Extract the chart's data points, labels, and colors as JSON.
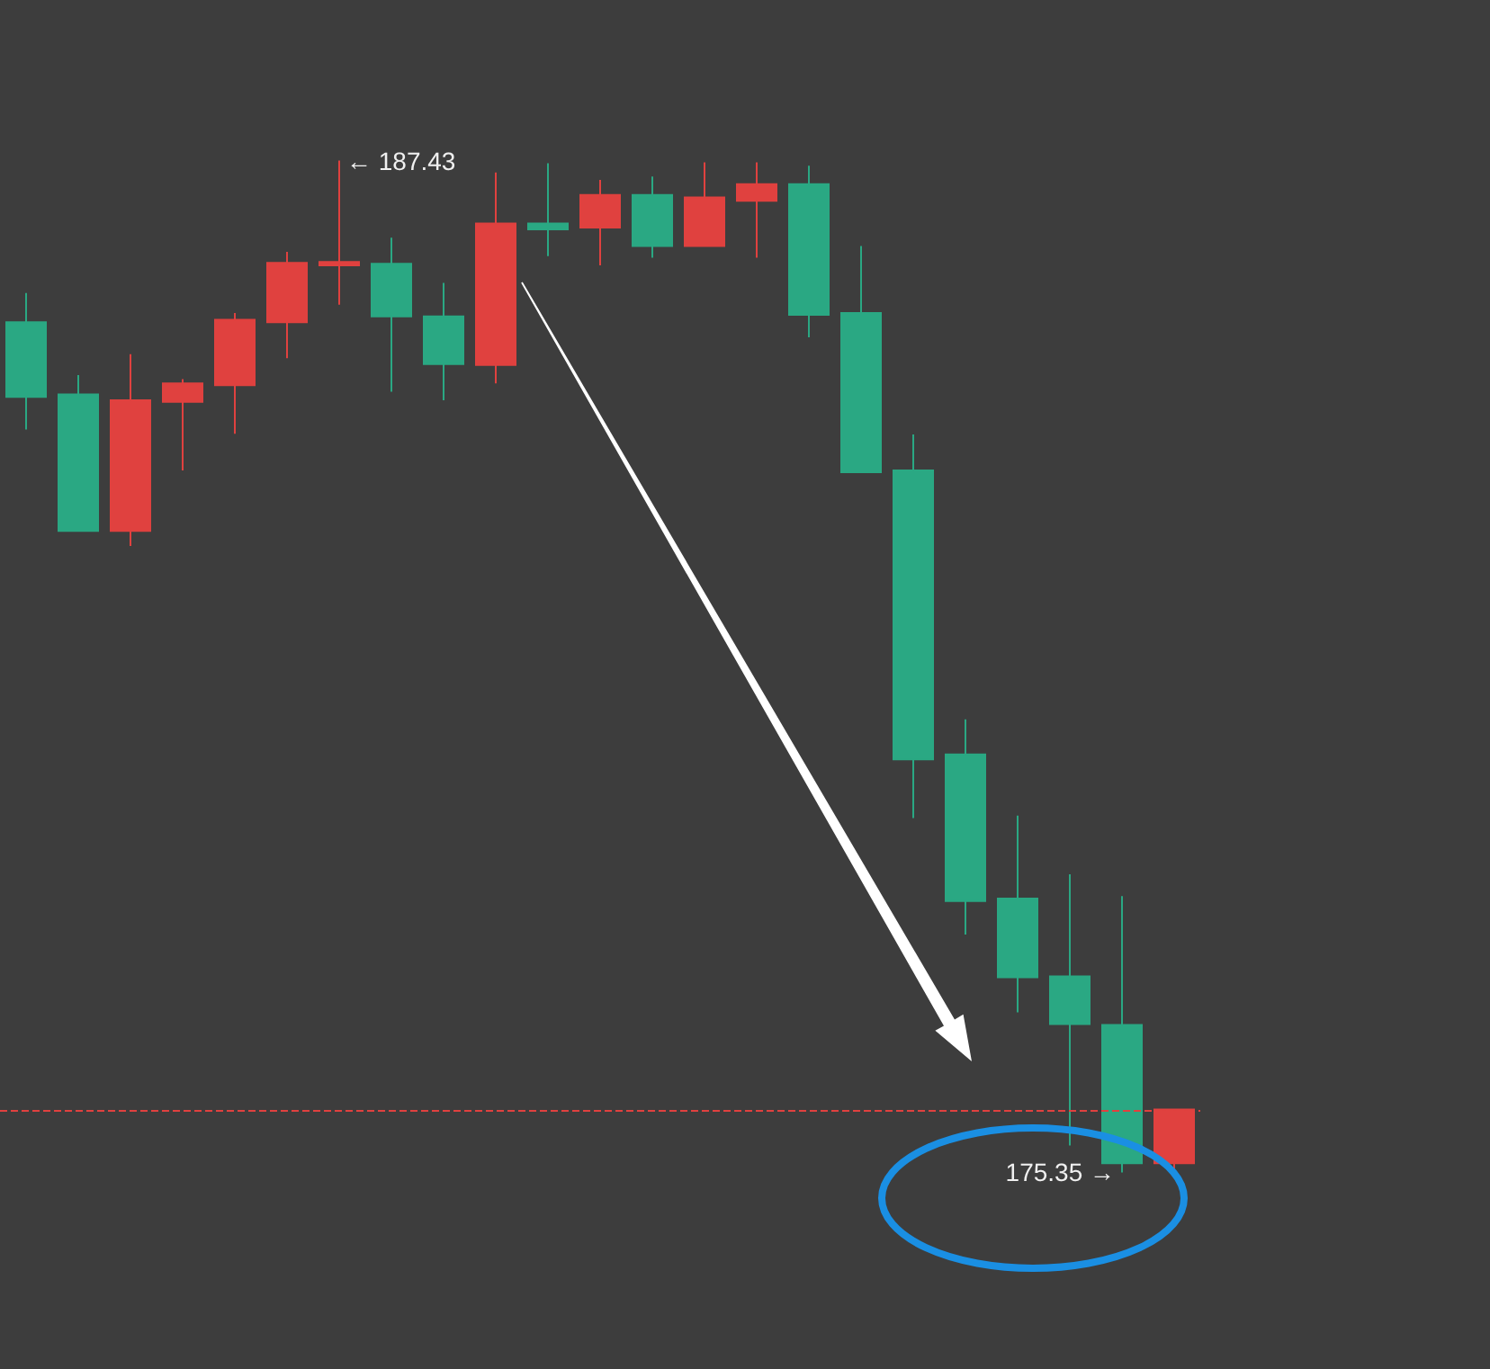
{
  "chart_data": {
    "type": "candlestick",
    "categories": [
      null,
      null,
      null,
      null,
      null,
      null,
      null,
      null,
      null,
      null,
      null,
      null,
      null,
      null,
      null,
      null,
      null,
      null,
      null,
      null,
      null,
      null,
      null
    ],
    "ohlc": [
      [
        185.5,
        185.85,
        184.22,
        184.61
      ],
      [
        184.64,
        184.87,
        183.01,
        183.01
      ],
      [
        183.01,
        185.12,
        182.83,
        184.57
      ],
      [
        184.55,
        184.82,
        183.73,
        184.77
      ],
      [
        184.75,
        185.61,
        184.17,
        185.53
      ],
      [
        185.5,
        186.34,
        185.07,
        186.21
      ],
      [
        186.18,
        187.43,
        185.71,
        186.22
      ],
      [
        186.2,
        186.51,
        184.67,
        185.57
      ],
      [
        185.57,
        185.97,
        184.57,
        185.0
      ],
      [
        184.99,
        187.29,
        184.77,
        186.68
      ],
      [
        186.68,
        187.4,
        186.29,
        186.61
      ],
      [
        186.63,
        187.2,
        186.18,
        187.02
      ],
      [
        187.02,
        187.24,
        186.27,
        186.41
      ],
      [
        186.41,
        187.41,
        186.41,
        186.99
      ],
      [
        186.95,
        187.41,
        186.27,
        187.15
      ],
      [
        187.15,
        187.37,
        185.32,
        185.59
      ],
      [
        185.61,
        186.41,
        183.7,
        183.71
      ],
      [
        183.73,
        184.16,
        179.58,
        180.28
      ],
      [
        180.34,
        180.76,
        178.19,
        178.59
      ],
      [
        178.62,
        179.61,
        177.26,
        177.68
      ],
      [
        177.69,
        178.91,
        175.67,
        177.12
      ],
      [
        177.11,
        178.65,
        175.35,
        175.46
      ],
      [
        175.46,
        176.1,
        175.39,
        176.1
      ]
    ],
    "colors": [
      "#2aa883",
      "#2aa883",
      "#e0413f",
      "#e0413f",
      "#e0413f",
      "#e0413f",
      "#e0413f",
      "#2aa883",
      "#2aa883",
      "#e0413f",
      "#2aa883",
      "#e0413f",
      "#2aa883",
      "#e0413f",
      "#e0413f",
      "#2aa883",
      "#2aa883",
      "#2aa883",
      "#2aa883",
      "#2aa883",
      "#2aa883",
      "#2aa883",
      "#e0413f"
    ],
    "ref_lines": [
      {
        "axis": "y",
        "value": 176.09,
        "color": "#e0413f",
        "line_style": "dashed"
      }
    ],
    "annotations": [
      "← 187.43",
      "175.35 →"
    ]
  }
}
